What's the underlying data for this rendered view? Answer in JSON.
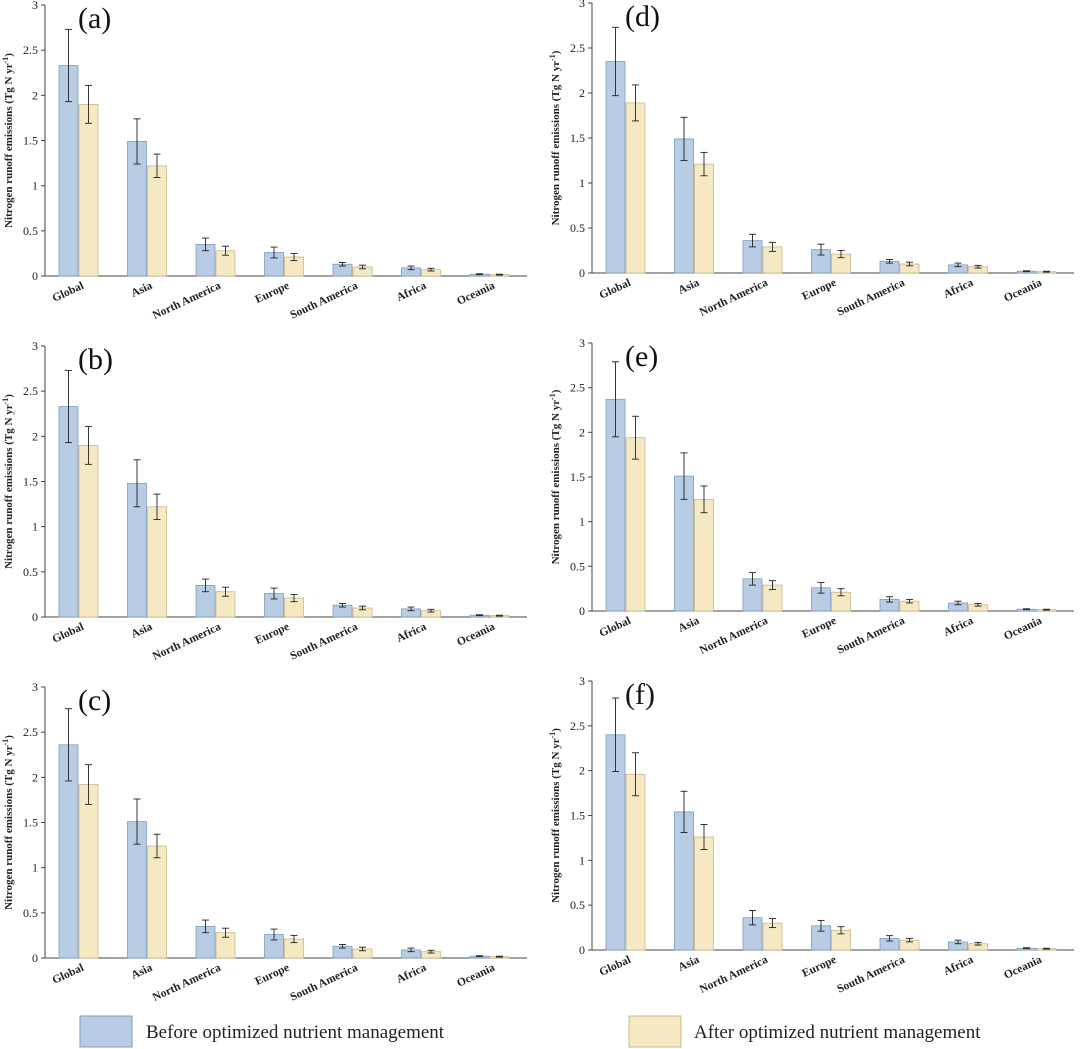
{
  "colors": {
    "before": "#b8cce4",
    "before_edge": "#7f9cc4",
    "after": "#f5e9c4",
    "after_edge": "#c9b98a",
    "axis": "#444444",
    "errorbar": "#222222"
  },
  "legend": {
    "before": "Before optimized nutrient management",
    "after": "After optimized nutrient management"
  },
  "chart_data": [
    {
      "type": "bar",
      "panel": "(a)",
      "categories": [
        "Global",
        "Asia",
        "North America",
        "Europe",
        "South America",
        "Africa",
        "Oceania"
      ],
      "ylabel": "Nitrogen runoff emissions (Tg N yr",
      "ylabel_sup": "-1",
      "ylabel_close": ")",
      "ylim": [
        0,
        3
      ],
      "yticks": [
        "0",
        "0.5",
        "1",
        "1.5",
        "2",
        "2.5",
        "3"
      ],
      "series": [
        {
          "name": "Before optimized nutrient management",
          "values": [
            2.33,
            1.49,
            0.35,
            0.26,
            0.13,
            0.09,
            0.02
          ],
          "errors": [
            0.4,
            0.25,
            0.07,
            0.06,
            0.02,
            0.02,
            0.005
          ]
        },
        {
          "name": "After optimized nutrient management",
          "values": [
            1.9,
            1.22,
            0.28,
            0.21,
            0.1,
            0.07,
            0.015
          ],
          "errors": [
            0.21,
            0.13,
            0.05,
            0.04,
            0.02,
            0.015,
            0.005
          ]
        }
      ]
    },
    {
      "type": "bar",
      "panel": "(b)",
      "categories": [
        "Global",
        "Asia",
        "North America",
        "Europe",
        "South America",
        "Africa",
        "Oceania"
      ],
      "ylabel": "Nitrogen runoff emissions (Tg N yr",
      "ylabel_sup": "-1",
      "ylabel_close": ")",
      "ylim": [
        0,
        3
      ],
      "yticks": [
        "0",
        "0.5",
        "1",
        "1.5",
        "2",
        "2.5",
        "3"
      ],
      "series": [
        {
          "name": "Before optimized nutrient management",
          "values": [
            2.33,
            1.48,
            0.35,
            0.26,
            0.13,
            0.09,
            0.02
          ],
          "errors": [
            0.4,
            0.26,
            0.07,
            0.06,
            0.02,
            0.02,
            0.005
          ]
        },
        {
          "name": "After optimized nutrient management",
          "values": [
            1.9,
            1.22,
            0.28,
            0.21,
            0.1,
            0.07,
            0.015
          ],
          "errors": [
            0.21,
            0.14,
            0.05,
            0.04,
            0.02,
            0.015,
            0.005
          ]
        }
      ]
    },
    {
      "type": "bar",
      "panel": "(c)",
      "categories": [
        "Global",
        "Asia",
        "North America",
        "Europe",
        "South America",
        "Africa",
        "Oceania"
      ],
      "ylabel": "Nitrogen runoff emissions (Tg N yr",
      "ylabel_sup": "-1",
      "ylabel_close": ")",
      "ylim": [
        0,
        3
      ],
      "yticks": [
        "0",
        "0.5",
        "1",
        "1.5",
        "2",
        "2.5",
        "3"
      ],
      "series": [
        {
          "name": "Before optimized nutrient management",
          "values": [
            2.36,
            1.51,
            0.35,
            0.26,
            0.13,
            0.09,
            0.02
          ],
          "errors": [
            0.4,
            0.25,
            0.07,
            0.06,
            0.02,
            0.02,
            0.005
          ]
        },
        {
          "name": "After optimized nutrient management",
          "values": [
            1.92,
            1.24,
            0.28,
            0.21,
            0.1,
            0.07,
            0.015
          ],
          "errors": [
            0.22,
            0.13,
            0.05,
            0.04,
            0.02,
            0.015,
            0.005
          ]
        }
      ]
    },
    {
      "type": "bar",
      "panel": "(d)",
      "categories": [
        "Global",
        "Asia",
        "North America",
        "Europe",
        "South America",
        "Africa",
        "Oceania"
      ],
      "ylabel": "Nitrogen runoff emissions (Tg N yr",
      "ylabel_sup": "-1",
      "ylabel_close": ")",
      "ylim": [
        0,
        3
      ],
      "yticks": [
        "0",
        "0.5",
        "1",
        "1.5",
        "2",
        "2.5",
        "3"
      ],
      "series": [
        {
          "name": "Before optimized nutrient management",
          "values": [
            2.35,
            1.49,
            0.36,
            0.26,
            0.13,
            0.09,
            0.02
          ],
          "errors": [
            0.38,
            0.24,
            0.07,
            0.06,
            0.02,
            0.02,
            0.005
          ]
        },
        {
          "name": "After optimized nutrient management",
          "values": [
            1.89,
            1.21,
            0.29,
            0.21,
            0.1,
            0.07,
            0.015
          ],
          "errors": [
            0.2,
            0.13,
            0.05,
            0.04,
            0.02,
            0.015,
            0.005
          ]
        }
      ]
    },
    {
      "type": "bar",
      "panel": "(e)",
      "categories": [
        "Global",
        "Asia",
        "North America",
        "Europe",
        "South America",
        "Africa",
        "Oceania"
      ],
      "ylabel": "Nitrogen runoff emissions (Tg N yr",
      "ylabel_sup": "-1",
      "ylabel_close": ")",
      "ylim": [
        0,
        3
      ],
      "yticks": [
        "0",
        "0.5",
        "1",
        "1.5",
        "2",
        "2.5",
        "3"
      ],
      "series": [
        {
          "name": "Before optimized nutrient management",
          "values": [
            2.37,
            1.51,
            0.36,
            0.26,
            0.13,
            0.09,
            0.02
          ],
          "errors": [
            0.42,
            0.26,
            0.07,
            0.06,
            0.03,
            0.02,
            0.005
          ]
        },
        {
          "name": "After optimized nutrient management",
          "values": [
            1.94,
            1.25,
            0.29,
            0.21,
            0.11,
            0.07,
            0.015
          ],
          "errors": [
            0.24,
            0.15,
            0.05,
            0.04,
            0.02,
            0.015,
            0.005
          ]
        }
      ]
    },
    {
      "type": "bar",
      "panel": "(f)",
      "categories": [
        "Global",
        "Asia",
        "North America",
        "Europe",
        "South America",
        "Africa",
        "Oceania"
      ],
      "ylabel": "Nitrogen runoff emissions (Tg N yr",
      "ylabel_sup": "-1",
      "ylabel_close": ")",
      "ylim": [
        0,
        3
      ],
      "yticks": [
        "0",
        "0.5",
        "1",
        "1.5",
        "2",
        "2.5",
        "3"
      ],
      "series": [
        {
          "name": "Before optimized nutrient management",
          "values": [
            2.4,
            1.54,
            0.36,
            0.27,
            0.13,
            0.09,
            0.02
          ],
          "errors": [
            0.41,
            0.23,
            0.08,
            0.06,
            0.03,
            0.02,
            0.005
          ]
        },
        {
          "name": "After optimized nutrient management",
          "values": [
            1.96,
            1.26,
            0.3,
            0.22,
            0.11,
            0.07,
            0.015
          ],
          "errors": [
            0.24,
            0.14,
            0.05,
            0.04,
            0.02,
            0.015,
            0.005
          ]
        }
      ]
    }
  ]
}
